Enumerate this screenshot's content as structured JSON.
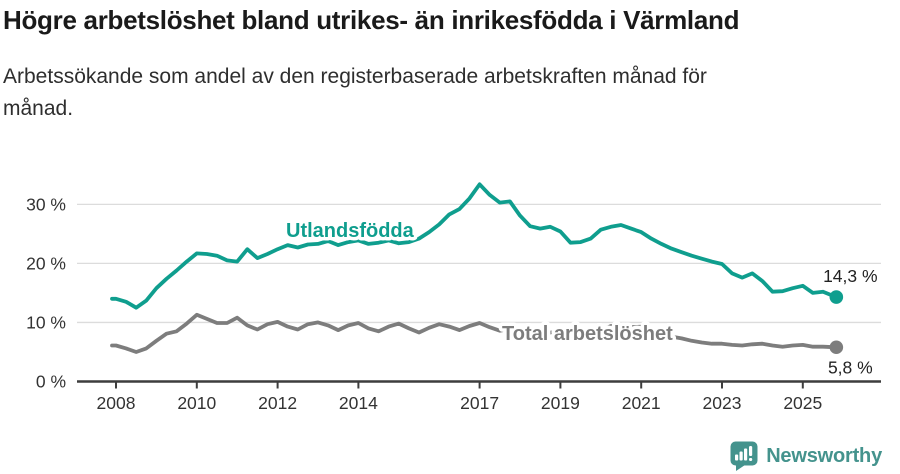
{
  "header": {
    "title": "Högre arbetslöshet bland utrikes- än inrikesfödda i Värmland",
    "subtitle_line1": "Arbetssökande som andel av den registerbaserade arbetskraften månad för",
    "subtitle_line2": "månad."
  },
  "footer": {
    "brand": "Newsworthy"
  },
  "colors": {
    "teal": "#0f9e8e",
    "gray": "#7d7d7d",
    "grid": "#dcdcdc",
    "axis": "#3d3d3d",
    "tick_text": "#333333",
    "title_text": "#1a1a1a",
    "end_label_text": "#222222",
    "logo": "#44938d"
  },
  "chart_data": {
    "type": "line",
    "x_axis": {
      "ticks": [
        {
          "value": 2008,
          "label": "2008"
        },
        {
          "value": 2010,
          "label": "2010"
        },
        {
          "value": 2012,
          "label": "2012"
        },
        {
          "value": 2014,
          "label": "2014"
        },
        {
          "value": 2017,
          "label": "2017"
        },
        {
          "value": 2019,
          "label": "2019"
        },
        {
          "value": 2021,
          "label": "2021"
        },
        {
          "value": 2023,
          "label": "2023"
        },
        {
          "value": 2025,
          "label": "2025"
        }
      ]
    },
    "y_axis": {
      "unit": "%",
      "range": [
        0,
        35
      ],
      "ticks": [
        {
          "value": 0,
          "label": "0 %"
        },
        {
          "value": 10,
          "label": "10 %"
        },
        {
          "value": 20,
          "label": "20 %"
        },
        {
          "value": 30,
          "label": "30 %"
        }
      ]
    },
    "grid": true,
    "legend_position": "inline-labels",
    "series": [
      {
        "name": "Utlandsfödda",
        "color": "#0f9e8e",
        "end_label": "14,3 %",
        "points": [
          [
            2007.9,
            14.0
          ],
          [
            2008.0,
            14.0
          ],
          [
            2008.25,
            13.5
          ],
          [
            2008.5,
            12.5
          ],
          [
            2008.75,
            13.7
          ],
          [
            2009.0,
            15.8
          ],
          [
            2009.25,
            17.4
          ],
          [
            2009.5,
            18.8
          ],
          [
            2009.75,
            20.3
          ],
          [
            2010.0,
            21.7
          ],
          [
            2010.25,
            21.6
          ],
          [
            2010.5,
            21.3
          ],
          [
            2010.75,
            20.5
          ],
          [
            2011.0,
            20.3
          ],
          [
            2011.25,
            22.4
          ],
          [
            2011.5,
            20.9
          ],
          [
            2011.75,
            21.6
          ],
          [
            2012.0,
            22.4
          ],
          [
            2012.25,
            23.1
          ],
          [
            2012.5,
            22.7
          ],
          [
            2012.75,
            23.2
          ],
          [
            2013.0,
            23.3
          ],
          [
            2013.25,
            23.8
          ],
          [
            2013.5,
            23.1
          ],
          [
            2013.75,
            23.6
          ],
          [
            2014.0,
            23.9
          ],
          [
            2014.25,
            23.3
          ],
          [
            2014.5,
            23.5
          ],
          [
            2014.75,
            23.9
          ],
          [
            2015.0,
            23.4
          ],
          [
            2015.25,
            23.6
          ],
          [
            2015.5,
            24.2
          ],
          [
            2015.75,
            25.3
          ],
          [
            2016.0,
            26.6
          ],
          [
            2016.25,
            28.3
          ],
          [
            2016.5,
            29.2
          ],
          [
            2016.75,
            31.0
          ],
          [
            2017.0,
            33.4
          ],
          [
            2017.25,
            31.6
          ],
          [
            2017.5,
            30.3
          ],
          [
            2017.75,
            30.5
          ],
          [
            2018.0,
            28.1
          ],
          [
            2018.25,
            26.3
          ],
          [
            2018.5,
            25.9
          ],
          [
            2018.75,
            26.2
          ],
          [
            2019.0,
            25.4
          ],
          [
            2019.25,
            23.5
          ],
          [
            2019.5,
            23.6
          ],
          [
            2019.75,
            24.2
          ],
          [
            2020.0,
            25.7
          ],
          [
            2020.25,
            26.2
          ],
          [
            2020.5,
            26.5
          ],
          [
            2020.75,
            25.9
          ],
          [
            2021.0,
            25.3
          ],
          [
            2021.25,
            24.2
          ],
          [
            2021.5,
            23.3
          ],
          [
            2021.75,
            22.5
          ],
          [
            2022.0,
            21.9
          ],
          [
            2022.25,
            21.3
          ],
          [
            2022.5,
            20.8
          ],
          [
            2022.75,
            20.3
          ],
          [
            2023.0,
            19.9
          ],
          [
            2023.25,
            18.3
          ],
          [
            2023.5,
            17.6
          ],
          [
            2023.75,
            18.3
          ],
          [
            2024.0,
            17.0
          ],
          [
            2024.25,
            15.2
          ],
          [
            2024.5,
            15.3
          ],
          [
            2024.75,
            15.8
          ],
          [
            2025.0,
            16.2
          ],
          [
            2025.25,
            15.0
          ],
          [
            2025.5,
            15.2
          ],
          [
            2025.83,
            14.3
          ]
        ]
      },
      {
        "name": "Total arbetslöshet",
        "color": "#7d7d7d",
        "end_label": "5,8 %",
        "points": [
          [
            2007.9,
            6.1
          ],
          [
            2008.0,
            6.1
          ],
          [
            2008.25,
            5.6
          ],
          [
            2008.5,
            5.0
          ],
          [
            2008.75,
            5.6
          ],
          [
            2009.0,
            6.9
          ],
          [
            2009.25,
            8.1
          ],
          [
            2009.5,
            8.5
          ],
          [
            2009.75,
            9.8
          ],
          [
            2010.0,
            11.3
          ],
          [
            2010.25,
            10.6
          ],
          [
            2010.5,
            9.9
          ],
          [
            2010.75,
            9.9
          ],
          [
            2011.0,
            10.8
          ],
          [
            2011.25,
            9.5
          ],
          [
            2011.5,
            8.8
          ],
          [
            2011.75,
            9.7
          ],
          [
            2012.0,
            10.1
          ],
          [
            2012.25,
            9.3
          ],
          [
            2012.5,
            8.8
          ],
          [
            2012.75,
            9.7
          ],
          [
            2013.0,
            10.0
          ],
          [
            2013.25,
            9.5
          ],
          [
            2013.5,
            8.7
          ],
          [
            2013.75,
            9.5
          ],
          [
            2014.0,
            9.9
          ],
          [
            2014.25,
            9.0
          ],
          [
            2014.5,
            8.5
          ],
          [
            2014.75,
            9.3
          ],
          [
            2015.0,
            9.8
          ],
          [
            2015.25,
            9.0
          ],
          [
            2015.5,
            8.3
          ],
          [
            2015.75,
            9.1
          ],
          [
            2016.0,
            9.7
          ],
          [
            2016.25,
            9.3
          ],
          [
            2016.5,
            8.7
          ],
          [
            2016.75,
            9.4
          ],
          [
            2017.0,
            9.9
          ],
          [
            2017.25,
            9.2
          ],
          [
            2017.5,
            8.6
          ],
          [
            2017.75,
            8.9
          ],
          [
            2018.0,
            8.8
          ],
          [
            2018.25,
            8.3
          ],
          [
            2018.5,
            7.9
          ],
          [
            2018.75,
            8.3
          ],
          [
            2019.0,
            8.4
          ],
          [
            2019.25,
            7.9
          ],
          [
            2019.5,
            7.7
          ],
          [
            2019.75,
            8.1
          ],
          [
            2020.0,
            8.6
          ],
          [
            2020.25,
            9.4
          ],
          [
            2020.5,
            9.6
          ],
          [
            2020.75,
            9.2
          ],
          [
            2021.0,
            9.3
          ],
          [
            2021.25,
            8.6
          ],
          [
            2021.5,
            8.0
          ],
          [
            2021.75,
            7.6
          ],
          [
            2022.0,
            7.3
          ],
          [
            2022.25,
            6.9
          ],
          [
            2022.5,
            6.6
          ],
          [
            2022.75,
            6.4
          ],
          [
            2023.0,
            6.4
          ],
          [
            2023.25,
            6.2
          ],
          [
            2023.5,
            6.1
          ],
          [
            2023.75,
            6.3
          ],
          [
            2024.0,
            6.4
          ],
          [
            2024.25,
            6.1
          ],
          [
            2024.5,
            5.9
          ],
          [
            2024.75,
            6.1
          ],
          [
            2025.0,
            6.2
          ],
          [
            2025.25,
            5.9
          ],
          [
            2025.5,
            5.9
          ],
          [
            2025.83,
            5.8
          ]
        ]
      }
    ]
  }
}
